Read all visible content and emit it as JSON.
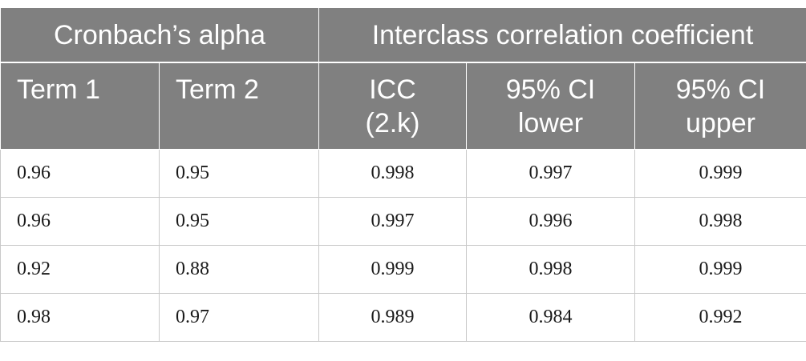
{
  "header": {
    "groups": [
      {
        "label": "Cronbach’s alpha"
      },
      {
        "label": "Interclass correlation coefficient"
      }
    ],
    "columns": [
      {
        "lines": [
          "Term 1"
        ]
      },
      {
        "lines": [
          "Term 2"
        ]
      },
      {
        "lines": [
          "ICC",
          "(2.k)"
        ]
      },
      {
        "lines": [
          "95% CI",
          "lower"
        ]
      },
      {
        "lines": [
          "95% CI",
          "upper"
        ]
      }
    ]
  },
  "rows": [
    [
      "0.96",
      "0.95",
      "0.998",
      "0.997",
      "0.999"
    ],
    [
      "0.96",
      "0.95",
      "0.997",
      "0.996",
      "0.998"
    ],
    [
      "0.92",
      "0.88",
      "0.999",
      "0.998",
      "0.999"
    ],
    [
      "0.98",
      "0.97",
      "0.989",
      "0.984",
      "0.992"
    ]
  ],
  "colors": {
    "header_bg": "#808080",
    "header_text": "#ffffff",
    "grid_line": "#c9c9c9"
  }
}
